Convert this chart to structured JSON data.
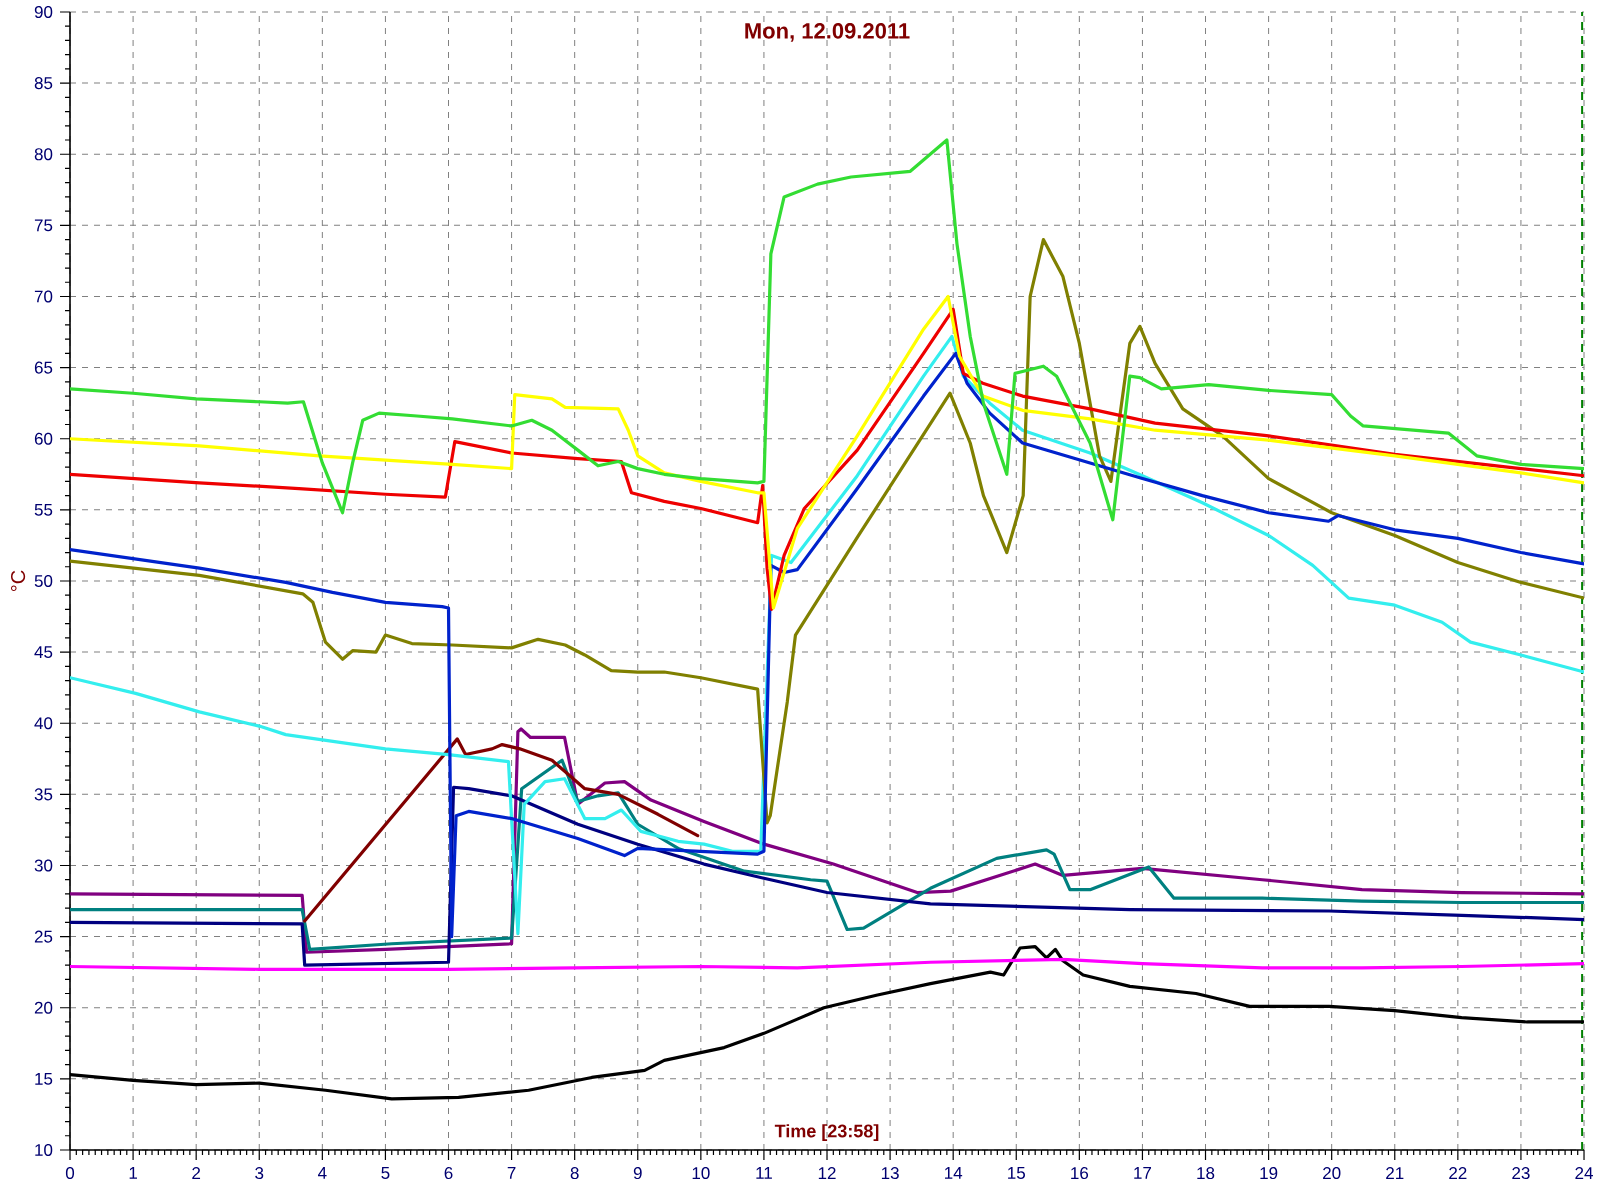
{
  "chart_data": {
    "type": "line",
    "title": "Mon, 12.09.2011",
    "xlabel": "Time [23:58]",
    "ylabel": "°C",
    "xlim": [
      0,
      24
    ],
    "ylim": [
      10,
      90
    ],
    "xticks": [
      0,
      1,
      2,
      3,
      4,
      5,
      6,
      7,
      8,
      9,
      10,
      11,
      12,
      13,
      14,
      15,
      16,
      17,
      18,
      19,
      20,
      21,
      22,
      23,
      24
    ],
    "yticks": [
      10,
      15,
      20,
      25,
      30,
      35,
      40,
      45,
      50,
      55,
      60,
      65,
      70,
      75,
      80,
      85,
      90
    ],
    "grid": true,
    "ref_lines": [
      {
        "axis": "x",
        "value": 23.97,
        "color": "#008000",
        "line_style": "dashed"
      }
    ],
    "series": [
      {
        "color": "#000000",
        "x": [
          0,
          1.0,
          2.0,
          3.0,
          4.05,
          5.1,
          6.16,
          7.27,
          8.27,
          9.11,
          9.42,
          10.37,
          11.0,
          11.53,
          11.95,
          12.8,
          13.64,
          14.59,
          14.8,
          15.06,
          15.3,
          15.48,
          15.62,
          15.74,
          16.06,
          16.8,
          17.85,
          18.7,
          19.96,
          21.0,
          22.06,
          23.1,
          24.0
        ],
        "values": [
          15.3,
          14.9,
          14.6,
          14.7,
          14.2,
          13.6,
          13.7,
          14.2,
          15.1,
          15.6,
          16.3,
          17.2,
          18.2,
          19.2,
          20.0,
          20.9,
          21.7,
          22.5,
          22.3,
          24.2,
          24.3,
          23.5,
          24.1,
          23.3,
          22.3,
          21.5,
          21.0,
          20.1,
          20.1,
          19.8,
          19.3,
          19.0,
          19.0
        ]
      },
      {
        "color": "#ff00ff",
        "x": [
          0,
          3.0,
          6.0,
          8.0,
          10.0,
          11.53,
          13.64,
          15.74,
          17.0,
          18.9,
          20.48,
          22.06,
          24.0
        ],
        "values": [
          22.9,
          22.7,
          22.7,
          22.8,
          22.9,
          22.8,
          23.2,
          23.4,
          23.1,
          22.8,
          22.8,
          22.9,
          23.1
        ]
      },
      {
        "color": "#800080",
        "x": [
          0,
          3.68,
          3.75,
          5.0,
          7.0,
          7.1,
          7.15,
          7.3,
          7.84,
          8.05,
          8.48,
          8.79,
          9.21,
          10.05,
          11.0,
          12.1,
          13.43,
          13.96,
          15.3,
          15.74,
          17.0,
          18.9,
          20.48,
          22.06,
          24.0
        ],
        "values": [
          28.0,
          27.9,
          23.9,
          24.1,
          24.5,
          39.4,
          39.6,
          39.0,
          39.0,
          34.3,
          35.8,
          35.9,
          34.6,
          33.1,
          31.5,
          30.1,
          28.1,
          28.2,
          30.1,
          29.3,
          29.8,
          29.0,
          28.3,
          28.1,
          28.0
        ]
      },
      {
        "color": "#008080",
        "x": [
          0,
          3.68,
          3.8,
          5.1,
          7.0,
          7.16,
          7.8,
          8.05,
          8.37,
          8.69,
          9.0,
          9.64,
          10.69,
          11.74,
          12.0,
          12.32,
          12.58,
          13.64,
          14.69,
          15.48,
          15.6,
          15.85,
          16.17,
          17.1,
          17.5,
          18.9,
          20.48,
          22.06,
          24.0
        ],
        "values": [
          26.9,
          26.9,
          24.1,
          24.5,
          24.9,
          35.4,
          37.4,
          34.5,
          34.9,
          35.1,
          32.9,
          31.2,
          29.6,
          29.0,
          28.9,
          25.5,
          25.6,
          28.4,
          30.5,
          31.1,
          30.8,
          28.3,
          28.3,
          29.9,
          27.7,
          27.7,
          27.5,
          27.4,
          27.4
        ]
      },
      {
        "color": "#000080",
        "x": [
          0,
          3.68,
          3.72,
          6.0,
          6.08,
          6.32,
          7.0,
          8.05,
          9.0,
          10.05,
          11.0,
          12.0,
          13.64,
          16.8,
          19.96,
          22.06,
          24.0
        ],
        "values": [
          26.0,
          25.9,
          23.0,
          23.2,
          35.5,
          35.4,
          34.9,
          32.9,
          31.5,
          30.1,
          29.1,
          28.1,
          27.3,
          26.9,
          26.8,
          26.5,
          26.2
        ]
      },
      {
        "color": "#800000",
        "x": [
          3.72,
          6.14,
          6.27,
          6.69,
          6.85,
          7.13,
          7.64,
          8.16,
          8.69,
          9.32,
          9.95
        ],
        "values": [
          26.1,
          38.9,
          37.8,
          38.2,
          38.5,
          38.2,
          37.4,
          35.4,
          35.0,
          33.6,
          32.1
        ]
      },
      {
        "color": "#33eeee",
        "x": [
          0,
          1.04,
          2.05,
          3.0,
          3.42,
          5.0,
          6.0,
          6.95,
          7.1,
          7.2,
          7.53,
          7.84,
          8.16,
          8.48,
          8.74,
          9.05,
          9.64,
          10.05,
          10.5,
          10.95,
          11.12,
          11.43,
          12.48,
          13.53,
          13.98,
          14.16,
          14.58,
          15.1,
          16.17,
          17.0,
          17.95,
          19.0,
          19.7,
          20.27,
          21.0,
          21.75,
          22.2,
          23.0,
          24.0
        ],
        "values": [
          43.2,
          42.1,
          40.8,
          39.8,
          39.2,
          38.2,
          37.8,
          37.3,
          25.2,
          34.3,
          35.9,
          36.1,
          33.3,
          33.3,
          33.9,
          32.4,
          31.7,
          31.5,
          31.0,
          31.0,
          51.8,
          51.3,
          57.4,
          64.4,
          67.2,
          64.4,
          62.5,
          60.6,
          59.0,
          57.4,
          55.5,
          53.2,
          51.1,
          48.8,
          48.3,
          47.1,
          45.7,
          44.8,
          43.6
        ]
      },
      {
        "color": "#808000",
        "x": [
          0,
          2.05,
          3.69,
          3.85,
          4.05,
          4.32,
          4.48,
          4.85,
          5.0,
          5.42,
          6.06,
          7.0,
          7.42,
          7.85,
          8.16,
          8.58,
          9.0,
          9.42,
          10.0,
          10.9,
          11.05,
          11.1,
          11.37,
          11.5,
          12.5,
          13.95,
          14.27,
          14.48,
          14.85,
          15.11,
          15.22,
          15.43,
          15.74,
          16.0,
          16.32,
          16.5,
          16.8,
          16.96,
          17.2,
          17.64,
          18.27,
          19.0,
          20.0,
          21.0,
          22.0,
          23.0,
          24.0
        ],
        "values": [
          51.4,
          50.4,
          49.1,
          48.5,
          45.7,
          44.5,
          45.1,
          45.0,
          46.2,
          45.6,
          45.5,
          45.3,
          45.9,
          45.5,
          44.8,
          43.7,
          43.6,
          43.6,
          43.2,
          42.4,
          33.0,
          33.5,
          41.5,
          46.2,
          53.2,
          63.2,
          59.7,
          56.0,
          52.0,
          56.0,
          70.0,
          74.0,
          71.4,
          66.7,
          58.8,
          57.0,
          66.7,
          67.9,
          65.3,
          62.1,
          60.2,
          57.2,
          54.8,
          53.2,
          51.3,
          49.9,
          48.8
        ]
      },
      {
        "color": "#0022cc",
        "x": [
          0,
          2.05,
          3.42,
          4.16,
          5.0,
          5.9,
          6.0,
          6.05,
          6.12,
          6.32,
          7.0,
          8.05,
          8.79,
          9.0,
          10.9,
          11.0,
          11.11,
          11.32,
          11.53,
          12.48,
          13.53,
          14.04,
          14.22,
          14.58,
          15.1,
          16.17,
          17.0,
          17.95,
          19.0,
          19.95,
          20.1,
          21.0,
          22.0,
          23.0,
          24.0
        ],
        "values": [
          52.2,
          50.9,
          49.9,
          49.2,
          48.5,
          48.2,
          48.1,
          25.0,
          33.5,
          33.8,
          33.3,
          31.9,
          30.7,
          31.2,
          30.8,
          31.0,
          51.1,
          50.6,
          50.8,
          56.5,
          63.0,
          66.0,
          63.9,
          61.8,
          59.7,
          58.3,
          57.2,
          56.0,
          54.8,
          54.2,
          54.6,
          53.6,
          53.0,
          52.0,
          51.2
        ]
      },
      {
        "color": "#ee0000",
        "x": [
          0,
          2.05,
          3.63,
          5.0,
          5.95,
          6.1,
          7.0,
          8.05,
          8.74,
          8.9,
          9.42,
          10.0,
          10.9,
          10.98,
          11.05,
          11.12,
          11.32,
          11.64,
          12.48,
          13.53,
          14.0,
          14.16,
          14.47,
          15.1,
          16.17,
          17.2,
          19.0,
          21.0,
          23.0,
          24.0
        ],
        "values": [
          57.5,
          56.9,
          56.5,
          56.1,
          55.9,
          59.8,
          59.0,
          58.6,
          58.4,
          56.2,
          55.6,
          55.1,
          54.1,
          56.7,
          50.9,
          48.0,
          51.8,
          55.1,
          59.2,
          66.0,
          69.1,
          64.6,
          63.9,
          63.0,
          62.1,
          61.1,
          60.2,
          58.9,
          57.9,
          57.4
        ]
      },
      {
        "color": "#ffff00",
        "x": [
          0,
          2.05,
          3.95,
          6.06,
          7.0,
          7.05,
          7.64,
          7.85,
          8.69,
          8.85,
          9.0,
          9.42,
          10.0,
          10.9,
          11.0,
          11.15,
          11.53,
          12.48,
          13.53,
          13.92,
          14.1,
          14.47,
          15.1,
          16.17,
          17.2,
          19.0,
          21.0,
          23.0,
          24.0
        ],
        "values": [
          60.0,
          59.5,
          58.8,
          58.2,
          57.9,
          63.1,
          62.8,
          62.2,
          62.1,
          60.6,
          58.8,
          57.6,
          57.0,
          56.2,
          56.2,
          48.1,
          53.7,
          60.2,
          67.7,
          70.0,
          65.8,
          63.0,
          62.0,
          61.4,
          60.6,
          59.9,
          58.8,
          57.6,
          56.9
        ]
      },
      {
        "color": "#33dd33",
        "x": [
          0,
          1,
          2,
          3,
          3.45,
          3.7,
          4.0,
          4.32,
          4.48,
          4.64,
          4.9,
          5.5,
          6.06,
          7.0,
          7.32,
          7.64,
          8.05,
          8.37,
          8.69,
          9.0,
          9.42,
          10.0,
          10.9,
          11.0,
          11.11,
          11.32,
          11.85,
          12.38,
          13.32,
          13.9,
          14.06,
          14.27,
          14.48,
          14.85,
          14.98,
          15.43,
          15.64,
          16.17,
          16.53,
          16.8,
          16.96,
          17.3,
          18.05,
          19.0,
          20.0,
          20.3,
          20.5,
          21.85,
          22.3,
          23.0,
          24.0
        ],
        "values": [
          63.5,
          63.2,
          62.8,
          62.6,
          62.5,
          62.6,
          58.3,
          54.8,
          58.3,
          61.3,
          61.8,
          61.6,
          61.4,
          60.9,
          61.3,
          60.6,
          59.2,
          58.1,
          58.4,
          57.9,
          57.5,
          57.2,
          56.9,
          57.0,
          73.0,
          77.0,
          77.9,
          78.4,
          78.8,
          81.0,
          73.7,
          67.2,
          62.5,
          57.5,
          64.6,
          65.1,
          64.4,
          59.7,
          54.3,
          64.4,
          64.3,
          63.5,
          63.8,
          63.4,
          63.1,
          61.6,
          60.9,
          60.4,
          58.8,
          58.2,
          57.9
        ]
      }
    ]
  }
}
